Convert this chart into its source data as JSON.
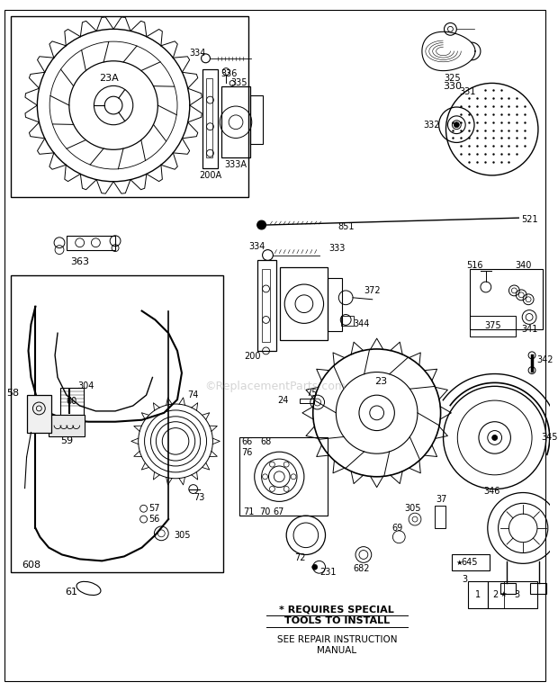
{
  "background_color": "#ffffff",
  "fig_width": 6.2,
  "fig_height": 7.68,
  "dpi": 100,
  "watermark": "©ReplacementParts.com",
  "note_line1": "* REQUIRES SPECIAL",
  "note_line2": "TOOLS TO INSTALL",
  "note_line3": "SEE REPAIR INSTRUCTION",
  "note_line4": "MANUAL"
}
